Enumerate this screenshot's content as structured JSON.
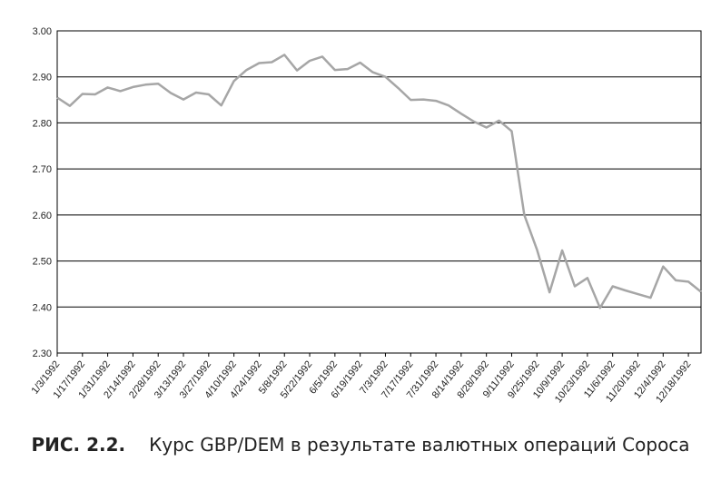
{
  "chart_data": {
    "type": "line",
    "title": "",
    "xlabel": "",
    "ylabel": "",
    "ylim": [
      2.3,
      3.0
    ],
    "yticks": [
      "2.30",
      "2.40",
      "2.50",
      "2.60",
      "2.70",
      "2.80",
      "2.90",
      "3.00"
    ],
    "grid": "horizontal",
    "legend": "none",
    "line_color": "#a6a6a6",
    "xtick_labels": [
      "1/3/1992",
      "1/17/1992",
      "1/31/1992",
      "2/14/1992",
      "2/28/1992",
      "3/13/1992",
      "3/27/1992",
      "4/10/1992",
      "4/24/1992",
      "5/8/1992",
      "5/22/1992",
      "6/5/1992",
      "6/19/1992",
      "7/3/1992",
      "7/17/1992",
      "7/31/1992",
      "8/14/1992",
      "8/28/1992",
      "9/11/1992",
      "9/25/1992",
      "10/9/1992",
      "10/23/1992",
      "11/6/1992",
      "11/20/1992",
      "12/4/1992",
      "12/18/1992"
    ],
    "series": [
      {
        "name": "",
        "x": [
          "1/3/1992",
          "1/10/1992",
          "1/17/1992",
          "1/24/1992",
          "1/31/1992",
          "2/7/1992",
          "2/14/1992",
          "2/21/1992",
          "2/28/1992",
          "3/6/1992",
          "3/13/1992",
          "3/20/1992",
          "3/27/1992",
          "4/3/1992",
          "4/10/1992",
          "4/17/1992",
          "4/24/1992",
          "5/1/1992",
          "5/8/1992",
          "5/15/1992",
          "5/22/1992",
          "5/29/1992",
          "6/5/1992",
          "6/12/1992",
          "6/19/1992",
          "6/26/1992",
          "7/3/1992",
          "7/10/1992",
          "7/17/1992",
          "7/24/1992",
          "7/31/1992",
          "8/7/1992",
          "8/14/1992",
          "8/21/1992",
          "8/28/1992",
          "9/4/1992",
          "9/11/1992",
          "9/18/1992",
          "9/25/1992",
          "10/2/1992",
          "10/9/1992",
          "10/16/1992",
          "10/23/1992",
          "10/30/1992",
          "11/6/1992",
          "11/13/1992",
          "11/20/1992",
          "11/27/1992",
          "12/4/1992",
          "12/11/1992",
          "12/18/1992",
          "12/25/1992"
        ],
        "values": [
          2.855,
          2.837,
          2.863,
          2.862,
          2.877,
          2.869,
          2.878,
          2.883,
          2.885,
          2.865,
          2.851,
          2.866,
          2.862,
          2.838,
          2.891,
          2.915,
          2.93,
          2.932,
          2.948,
          2.914,
          2.935,
          2.944,
          2.915,
          2.917,
          2.931,
          2.91,
          2.9,
          2.876,
          2.85,
          2.851,
          2.848,
          2.838,
          2.82,
          2.803,
          2.79,
          2.805,
          2.782,
          2.6,
          2.525,
          2.432,
          2.523,
          2.445,
          2.463,
          2.398,
          2.445,
          2.436,
          2.428,
          2.42,
          2.488,
          2.458,
          2.455,
          2.433
        ]
      }
    ]
  },
  "caption": {
    "figure": "РИС. 2.2.",
    "text": "Курс GBP/DEM в результате валютных операций Сороса"
  }
}
